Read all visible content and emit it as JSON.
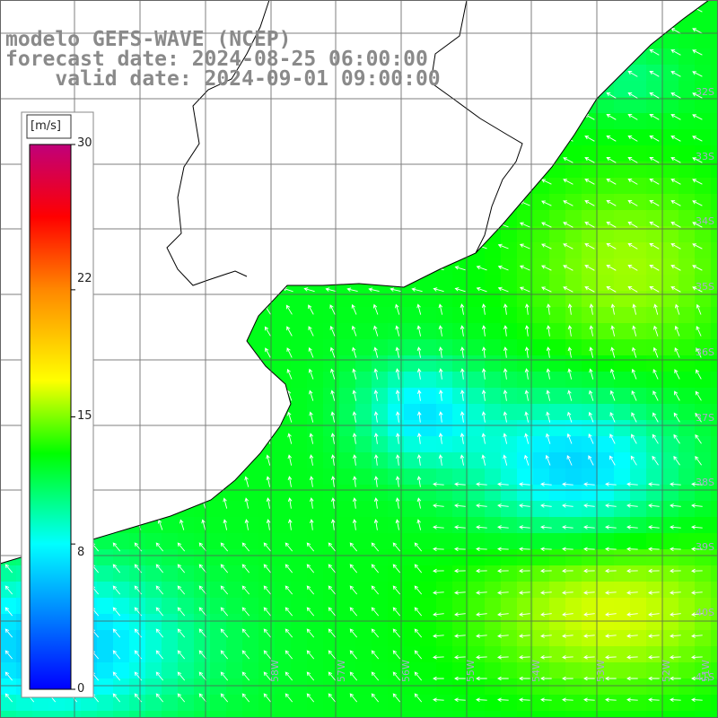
{
  "title": {
    "line1": "modelo GEFS-WAVE (NCEP)",
    "line2": "forecast date: 2024-08-25 06:00:00",
    "line3": "    valid date: 2024-09-01 09:00:00"
  },
  "colorbar": {
    "unit": "[m/s]",
    "ticks": [
      "30",
      "22",
      "15",
      "8",
      "0"
    ],
    "tick_values": [
      30,
      22,
      15,
      8,
      0
    ],
    "min": 0,
    "max": 30,
    "colors": [
      "#0000ff",
      "#00ffff",
      "#00ff00",
      "#ffff00",
      "#ff8800",
      "#ff0000",
      "#c0007a"
    ]
  },
  "map_labels": {
    "latitudes": [
      "32S",
      "33S",
      "34S",
      "35S",
      "36S",
      "37S",
      "38S",
      "39S",
      "40S",
      "41S"
    ],
    "longitudes": [
      "58W",
      "57W",
      "56W",
      "55W",
      "54W",
      "53W",
      "52W",
      "51W"
    ]
  },
  "legend": {
    "land_color": "#ffffff",
    "coast_color": "#000000",
    "grid_color": "#555555",
    "arrow_color": "#ffffff"
  }
}
